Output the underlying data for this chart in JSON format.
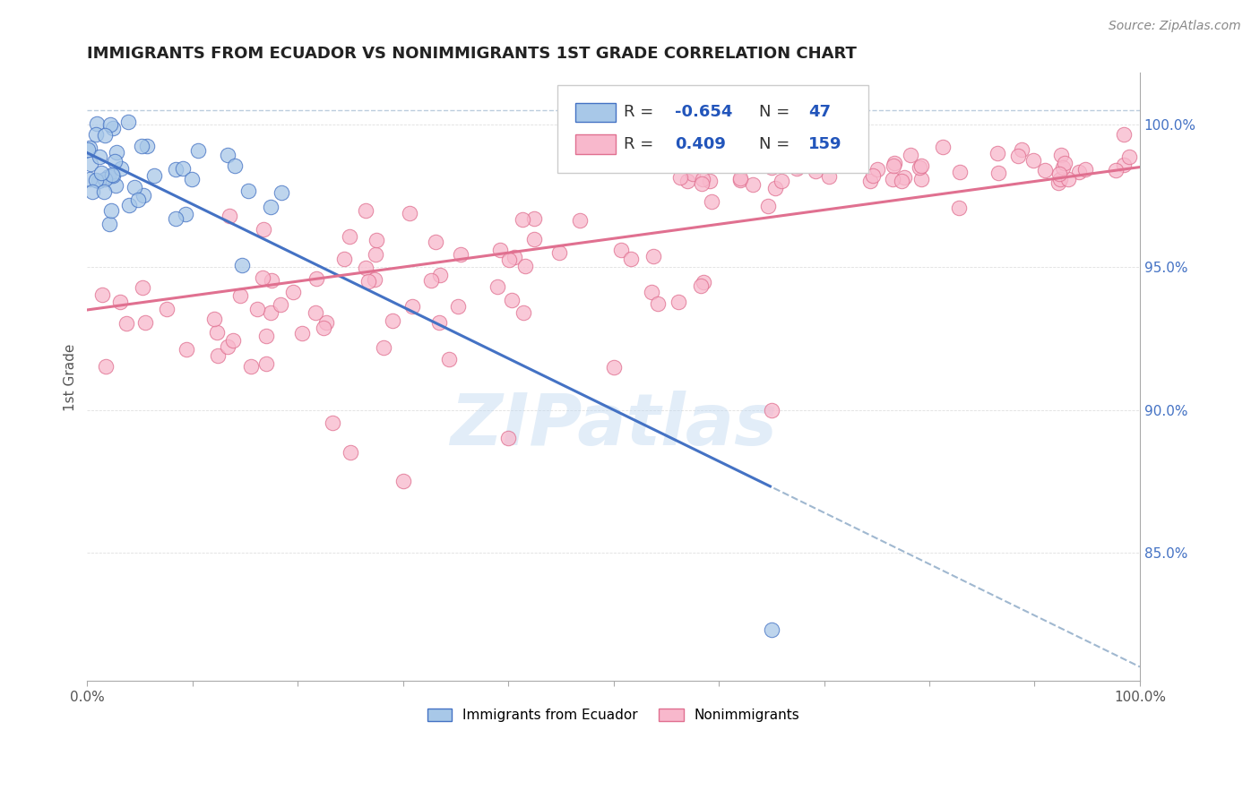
{
  "title": "IMMIGRANTS FROM ECUADOR VS NONIMMIGRANTS 1ST GRADE CORRELATION CHART",
  "source": "Source: ZipAtlas.com",
  "ylabel": "1st Grade",
  "blue_R": -0.654,
  "blue_N": 47,
  "pink_R": 0.409,
  "pink_N": 159,
  "blue_line_color": "#4472C4",
  "pink_line_color": "#e07090",
  "blue_scatter_face": "#a8c8e8",
  "blue_scatter_edge": "#4472C4",
  "pink_scatter_face": "#f8b8cc",
  "pink_scatter_edge": "#e07090",
  "dashed_color": "#a0b8d0",
  "right_axis_color": "#4472C4",
  "title_color": "#222222",
  "background_color": "#ffffff",
  "legend_blue_label": "Immigrants from Ecuador",
  "legend_pink_label": "Nonimmigrants",
  "watermark": "ZIPatlas",
  "xlim": [
    0.0,
    100.0
  ],
  "ylim": [
    80.5,
    101.8
  ],
  "blue_line_x0": 0.0,
  "blue_line_y0": 99.0,
  "blue_line_x1": 100.0,
  "blue_line_y1": 81.0,
  "blue_solid_end_x": 65.0,
  "pink_line_x0": 0.0,
  "pink_line_y0": 93.5,
  "pink_line_x1": 100.0,
  "pink_line_y1": 98.5,
  "dashed_top_y": 100.5,
  "yticks": [
    85.0,
    90.0,
    95.0,
    100.0
  ],
  "ytick_labels": [
    "85.0%",
    "90.0%",
    "95.0%",
    "100.0%"
  ],
  "xtick_positions": [
    0,
    10,
    20,
    30,
    40,
    50,
    60,
    70,
    80,
    90,
    100
  ]
}
